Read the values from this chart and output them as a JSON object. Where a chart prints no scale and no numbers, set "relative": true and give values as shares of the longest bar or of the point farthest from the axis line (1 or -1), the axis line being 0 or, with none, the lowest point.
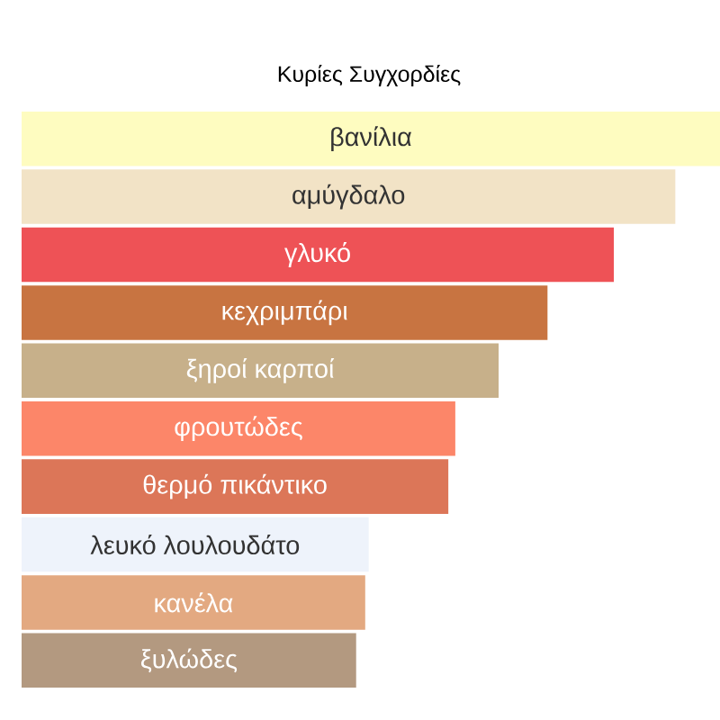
{
  "chart_data": {
    "type": "bar",
    "orientation": "horizontal",
    "relative": true,
    "title": "Κυρίες Συγχορδίες",
    "categories": [
      "βανίλια",
      "αμύγδαλο",
      "γλυκό",
      "κεχριμπάρι",
      "ξηροί καρποί",
      "φρουτώδες",
      "θερμό πικάντικο",
      "λευκό λουλουδάτο",
      "κανέλα",
      "ξυλώδες"
    ],
    "values": [
      1,
      0.936,
      0.848,
      0.753,
      0.683,
      0.621,
      0.611,
      0.497,
      0.492,
      0.479
    ],
    "colors": [
      "#fefcc0",
      "#f2e3c6",
      "#ee5256",
      "#c87441",
      "#c7b08a",
      "#fc8669",
      "#dc7658",
      "#eef3fb",
      "#e3a981",
      "#b39980"
    ]
  }
}
